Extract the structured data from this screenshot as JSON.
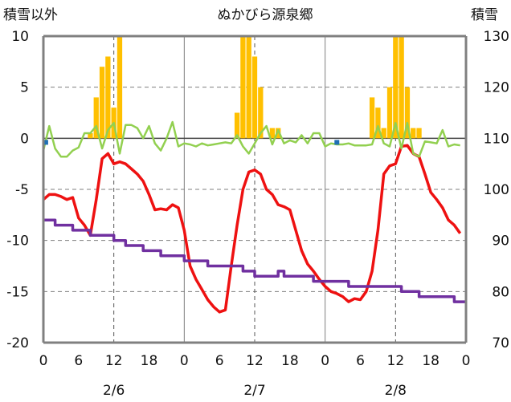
{
  "chart_data": {
    "type": "line",
    "title": "ぬかびら源泉郷",
    "left_axis_label": "積雪以外",
    "right_axis_label": "積雪",
    "left_ylim": [
      -20,
      10
    ],
    "left_yticks": [
      "10",
      "5",
      "0",
      "-5",
      "-10",
      "-15",
      "-20"
    ],
    "right_ylim": [
      70,
      130
    ],
    "right_yticks": [
      "130",
      "120",
      "110",
      "100",
      "90",
      "80",
      "70"
    ],
    "x_range_hours": [
      0,
      72
    ],
    "x_tick_labels": [
      "0",
      "6",
      "12",
      "18",
      "0",
      "6",
      "12",
      "18",
      "0",
      "6",
      "12",
      "18",
      "0"
    ],
    "day_labels": [
      "2/6",
      "2/7",
      "2/8"
    ],
    "colors": {
      "temperature": "#ee1111",
      "snow_depth": "#7030a0",
      "precipitation": "#ffc000",
      "wind": "#92d050",
      "marker": "#1f6fb4",
      "grid": "#7f7f7f",
      "axis": "#808080"
    },
    "series": [
      {
        "name": "precipitation",
        "axis": "left",
        "kind": "bar",
        "x": [
          8,
          9,
          10,
          11,
          12,
          13,
          33,
          34,
          35,
          36,
          37,
          39,
          40,
          56,
          57,
          58,
          59,
          60,
          61,
          62,
          63,
          64
        ],
        "values": [
          0.5,
          4,
          7,
          8,
          3,
          10,
          2.5,
          10,
          10,
          8,
          5,
          1,
          1,
          4,
          3,
          1,
          5,
          10,
          10,
          5,
          1,
          1
        ]
      },
      {
        "name": "temperature",
        "axis": "left",
        "kind": "line",
        "x": [
          0,
          1,
          2,
          3,
          4,
          5,
          6,
          7,
          8,
          9,
          10,
          11,
          12,
          13,
          14,
          15,
          16,
          17,
          18,
          19,
          20,
          21,
          22,
          23,
          24,
          25,
          26,
          27,
          28,
          29,
          30,
          31,
          32,
          33,
          34,
          35,
          36,
          37,
          38,
          39,
          40,
          41,
          42,
          43,
          44,
          45,
          46,
          47,
          48,
          49,
          50,
          51,
          52,
          53,
          54,
          55,
          56,
          57,
          58,
          59,
          60,
          61,
          62,
          63,
          64,
          65,
          66,
          67,
          68,
          69,
          70,
          71
        ],
        "values": [
          -6,
          -5.5,
          -5.5,
          -5.7,
          -6,
          -5.8,
          -7.8,
          -8.5,
          -9.5,
          -6,
          -2,
          -1.5,
          -2.5,
          -2.3,
          -2.5,
          -3,
          -3.5,
          -4.2,
          -5.5,
          -7,
          -6.9,
          -7,
          -6.5,
          -6.8,
          -9,
          -12.5,
          -13.8,
          -14.8,
          -15.8,
          -16.5,
          -17,
          -16.8,
          -12.5,
          -8.5,
          -5,
          -3.3,
          -3.1,
          -3.5,
          -5,
          -5.5,
          -6.5,
          -6.7,
          -7,
          -9,
          -11,
          -12.3,
          -13,
          -13.8,
          -14.5,
          -15,
          -15.2,
          -15.5,
          -16,
          -15.7,
          -15.8,
          -15,
          -13,
          -9,
          -3.5,
          -2.7,
          -2.5,
          -0.8,
          -0.7,
          -1.5,
          -1.8,
          -3.5,
          -5.3,
          -6,
          -6.8,
          -8,
          -8.5,
          -9.3
        ]
      },
      {
        "name": "wind",
        "axis": "left",
        "kind": "line",
        "x": [
          0,
          1,
          2,
          3,
          4,
          5,
          6,
          7,
          8,
          9,
          10,
          11,
          12,
          13,
          14,
          15,
          16,
          17,
          18,
          19,
          20,
          21,
          22,
          23,
          24,
          25,
          26,
          27,
          28,
          29,
          30,
          31,
          32,
          33,
          34,
          35,
          36,
          37,
          38,
          39,
          40,
          41,
          42,
          43,
          44,
          45,
          46,
          47,
          48,
          49,
          50,
          51,
          52,
          53,
          54,
          55,
          56,
          57,
          58,
          59,
          60,
          61,
          62,
          63,
          64,
          65,
          66,
          67,
          68,
          69,
          70,
          71
        ],
        "values": [
          -1.2,
          1.2,
          -1,
          -1.8,
          -1.8,
          -1.2,
          -0.9,
          0.5,
          0.5,
          1.2,
          -1,
          0.8,
          1.5,
          -1.5,
          1.3,
          1.3,
          1,
          0,
          1.2,
          -0.5,
          -1.2,
          0,
          1.6,
          -0.8,
          -0.5,
          -0.6,
          -0.8,
          -0.5,
          -0.7,
          -0.6,
          -0.5,
          -0.4,
          -0.5,
          0.3,
          -0.8,
          -1.5,
          -0.5,
          0.5,
          1.2,
          -0.6,
          0.8,
          -0.5,
          -0.2,
          -0.4,
          0.3,
          -0.5,
          0.5,
          0.5,
          -0.8,
          -0.5,
          -0.6,
          -0.6,
          -0.5,
          -0.7,
          -0.7,
          -0.7,
          -0.6,
          1.2,
          -0.5,
          -0.8,
          1.5,
          -1,
          1.5,
          -1.5,
          -1.8,
          -0.3,
          -0.4,
          -0.5,
          0.8,
          -0.8,
          -0.6,
          -0.7
        ]
      },
      {
        "name": "snow_depth",
        "axis": "right",
        "kind": "step",
        "x": [
          0,
          1,
          2,
          3,
          4,
          5,
          6,
          7,
          8,
          9,
          10,
          11,
          12,
          13,
          14,
          15,
          16,
          17,
          18,
          19,
          20,
          21,
          22,
          23,
          24,
          25,
          26,
          27,
          28,
          29,
          30,
          31,
          32,
          33,
          34,
          35,
          36,
          37,
          38,
          39,
          40,
          41,
          42,
          43,
          44,
          45,
          46,
          47,
          48,
          49,
          50,
          51,
          52,
          53,
          54,
          55,
          56,
          57,
          58,
          59,
          60,
          61,
          62,
          63,
          64,
          65,
          66,
          67,
          68,
          69,
          70,
          71
        ],
        "values": [
          94,
          94,
          93,
          93,
          93,
          92,
          92,
          92,
          91,
          91,
          91,
          91,
          90,
          90,
          89,
          89,
          89,
          88,
          88,
          88,
          87,
          87,
          87,
          87,
          86,
          86,
          86,
          86,
          85,
          85,
          85,
          85,
          85,
          85,
          84,
          84,
          83,
          83,
          83,
          83,
          84,
          83,
          83,
          83,
          83,
          83,
          82,
          82,
          82,
          82,
          82,
          82,
          81,
          81,
          81,
          81,
          81,
          81,
          81,
          81,
          81,
          80,
          80,
          80,
          79,
          79,
          79,
          79,
          79,
          79,
          78,
          78
        ]
      },
      {
        "name": "marker",
        "axis": "left",
        "kind": "point",
        "x": [
          0.4,
          50
        ],
        "values": [
          -0.4,
          -0.4
        ]
      }
    ]
  }
}
